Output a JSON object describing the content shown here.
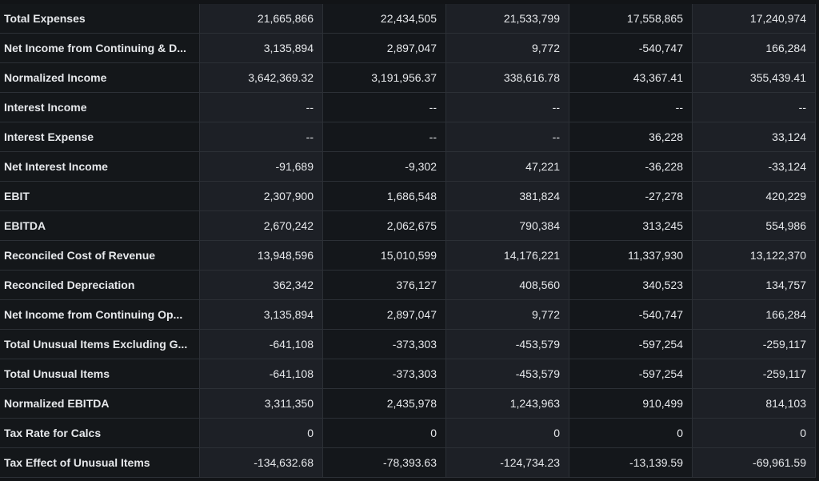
{
  "rows": [
    {
      "label": "Total Expenses",
      "values": [
        "21,665,866",
        "22,434,505",
        "21,533,799",
        "17,558,865",
        "17,240,974"
      ]
    },
    {
      "label": "Net Income from Continuing & D...",
      "values": [
        "3,135,894",
        "2,897,047",
        "9,772",
        "-540,747",
        "166,284"
      ]
    },
    {
      "label": "Normalized Income",
      "values": [
        "3,642,369.32",
        "3,191,956.37",
        "338,616.78",
        "43,367.41",
        "355,439.41"
      ]
    },
    {
      "label": "Interest Income",
      "values": [
        "--",
        "--",
        "--",
        "--",
        "--"
      ]
    },
    {
      "label": "Interest Expense",
      "values": [
        "--",
        "--",
        "--",
        "36,228",
        "33,124"
      ]
    },
    {
      "label": "Net Interest Income",
      "values": [
        "-91,689",
        "-9,302",
        "47,221",
        "-36,228",
        "-33,124"
      ]
    },
    {
      "label": "EBIT",
      "values": [
        "2,307,900",
        "1,686,548",
        "381,824",
        "-27,278",
        "420,229"
      ]
    },
    {
      "label": "EBITDA",
      "values": [
        "2,670,242",
        "2,062,675",
        "790,384",
        "313,245",
        "554,986"
      ]
    },
    {
      "label": "Reconciled Cost of Revenue",
      "values": [
        "13,948,596",
        "15,010,599",
        "14,176,221",
        "11,337,930",
        "13,122,370"
      ]
    },
    {
      "label": "Reconciled Depreciation",
      "values": [
        "362,342",
        "376,127",
        "408,560",
        "340,523",
        "134,757"
      ]
    },
    {
      "label": "Net Income from Continuing Op...",
      "values": [
        "3,135,894",
        "2,897,047",
        "9,772",
        "-540,747",
        "166,284"
      ]
    },
    {
      "label": "Total Unusual Items Excluding G...",
      "values": [
        "-641,108",
        "-373,303",
        "-453,579",
        "-597,254",
        "-259,117"
      ]
    },
    {
      "label": "Total Unusual Items",
      "values": [
        "-641,108",
        "-373,303",
        "-453,579",
        "-597,254",
        "-259,117"
      ]
    },
    {
      "label": "Normalized EBITDA",
      "values": [
        "3,311,350",
        "2,435,978",
        "1,243,963",
        "910,499",
        "814,103"
      ]
    },
    {
      "label": "Tax Rate for Calcs",
      "values": [
        "0",
        "0",
        "0",
        "0",
        "0"
      ]
    },
    {
      "label": "Tax Effect of Unusual Items",
      "values": [
        "-134,632.68",
        "-78,393.63",
        "-124,734.23",
        "-13,139.59",
        "-69,961.59"
      ]
    }
  ]
}
